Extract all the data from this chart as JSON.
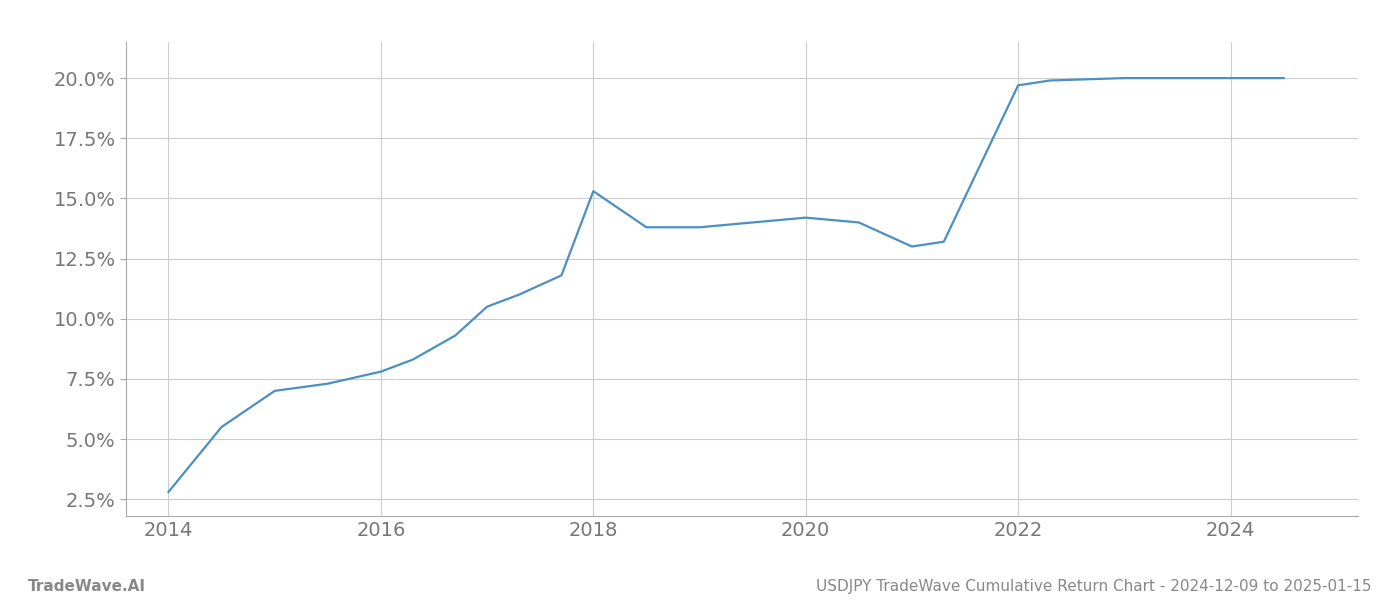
{
  "x_years": [
    2014.0,
    2014.5,
    2015.0,
    2015.5,
    2016.0,
    2016.3,
    2016.7,
    2017.0,
    2017.3,
    2017.7,
    2018.0,
    2018.5,
    2019.0,
    2019.5,
    2020.0,
    2020.5,
    2021.0,
    2021.3,
    2022.0,
    2022.3,
    2023.0,
    2023.5,
    2024.0,
    2024.5
  ],
  "y_values": [
    0.028,
    0.055,
    0.07,
    0.073,
    0.078,
    0.083,
    0.093,
    0.105,
    0.11,
    0.118,
    0.153,
    0.138,
    0.138,
    0.14,
    0.142,
    0.14,
    0.13,
    0.132,
    0.197,
    0.199,
    0.2,
    0.2,
    0.2,
    0.2
  ],
  "line_color": "#4a90c4",
  "line_width": 1.6,
  "background_color": "#ffffff",
  "grid_color": "#cccccc",
  "tick_label_color": "#777777",
  "yticks": [
    0.025,
    0.05,
    0.075,
    0.1,
    0.125,
    0.15,
    0.175,
    0.2
  ],
  "ytick_labels": [
    "2.5%",
    "5.0%",
    "7.5%",
    "10.0%",
    "12.5%",
    "15.0%",
    "17.5%",
    "20.0%"
  ],
  "xticks": [
    2014,
    2016,
    2018,
    2020,
    2022,
    2024
  ],
  "xlim": [
    2013.6,
    2025.2
  ],
  "ylim": [
    0.018,
    0.215
  ],
  "footer_left": "TradeWave.AI",
  "footer_right": "USDJPY TradeWave Cumulative Return Chart - 2024-12-09 to 2025-01-15",
  "footer_color": "#888888",
  "footer_fontsize": 11,
  "tick_fontsize": 14
}
